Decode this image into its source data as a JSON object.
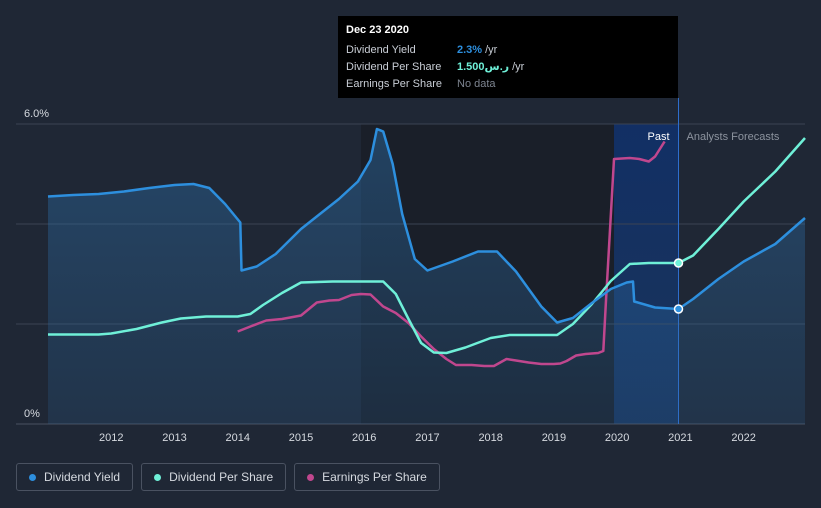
{
  "chart_data": {
    "type": "line",
    "x_range": [
      2011.0,
      2022.97
    ],
    "y_range": [
      0,
      6.0
    ],
    "y_ticks": [
      {
        "label": "6.0%",
        "value": 6.0
      },
      {
        "label": "0%",
        "value": 0
      }
    ],
    "x_ticks": [
      "2012",
      "2013",
      "2014",
      "2015",
      "2016",
      "2017",
      "2018",
      "2019",
      "2020",
      "2021",
      "2022"
    ],
    "past_label": "Past",
    "forecast_label": "Analysts Forecasts",
    "forecast_start": 2020.97,
    "highlight_start": 2019.95,
    "dark_band": [
      2015.95,
      2019.95
    ],
    "series": [
      {
        "name": "Dividend Yield",
        "color": "#2d8fde",
        "x": [
          2011.0,
          2011.4,
          2011.8,
          2012.2,
          2012.6,
          2013.0,
          2013.3,
          2013.55,
          2013.8,
          2014.04,
          2014.06,
          2014.3,
          2014.6,
          2015.0,
          2015.3,
          2015.6,
          2015.9,
          2016.1,
          2016.2,
          2016.3,
          2016.45,
          2016.6,
          2016.8,
          2017.0,
          2017.4,
          2017.8,
          2018.1,
          2018.4,
          2018.8,
          2019.05,
          2019.3,
          2019.6,
          2019.9,
          2020.15,
          2020.25,
          2020.27,
          2020.6,
          2020.97,
          2021.2,
          2021.6,
          2022.0,
          2022.5,
          2022.97
        ],
        "values": [
          4.55,
          4.58,
          4.6,
          4.65,
          4.72,
          4.78,
          4.8,
          4.72,
          4.4,
          4.03,
          3.07,
          3.15,
          3.4,
          3.9,
          4.2,
          4.5,
          4.85,
          5.28,
          5.9,
          5.85,
          5.2,
          4.2,
          3.3,
          3.07,
          3.25,
          3.45,
          3.45,
          3.05,
          2.35,
          2.03,
          2.12,
          2.42,
          2.7,
          2.83,
          2.85,
          2.45,
          2.33,
          2.3,
          2.5,
          2.9,
          3.25,
          3.6,
          4.12
        ]
      },
      {
        "name": "Dividend Per Share",
        "color": "#6ff0d8",
        "x": [
          2011.0,
          2011.5,
          2011.8,
          2012.0,
          2012.4,
          2012.8,
          2013.1,
          2013.5,
          2014.0,
          2014.2,
          2014.4,
          2014.7,
          2015.0,
          2015.5,
          2016.0,
          2016.3,
          2016.5,
          2016.7,
          2016.9,
          2017.1,
          2017.3,
          2017.6,
          2018.0,
          2018.3,
          2018.6,
          2019.0,
          2019.05,
          2019.3,
          2019.6,
          2019.9,
          2020.2,
          2020.5,
          2020.97,
          2021.2,
          2021.6,
          2022.0,
          2022.5,
          2022.97
        ],
        "values": [
          1.79,
          1.79,
          1.79,
          1.81,
          1.9,
          2.03,
          2.11,
          2.15,
          2.15,
          2.2,
          2.38,
          2.62,
          2.83,
          2.85,
          2.85,
          2.85,
          2.6,
          2.1,
          1.62,
          1.43,
          1.42,
          1.53,
          1.72,
          1.78,
          1.78,
          1.78,
          1.78,
          2.0,
          2.4,
          2.86,
          3.2,
          3.22,
          3.22,
          3.37,
          3.9,
          4.45,
          5.05,
          5.72
        ]
      },
      {
        "name": "Earnings Per Share",
        "color": "#c0478e",
        "x": [
          2014.0,
          2014.2,
          2014.45,
          2014.7,
          2015.0,
          2015.25,
          2015.45,
          2015.6,
          2015.8,
          2015.95,
          2016.1,
          2016.3,
          2016.5,
          2016.7,
          2016.9,
          2017.1,
          2017.3,
          2017.45,
          2017.7,
          2017.9,
          2018.05,
          2018.25,
          2018.4,
          2018.6,
          2018.8,
          2019.0,
          2019.1,
          2019.2,
          2019.35,
          2019.5,
          2019.7,
          2019.78,
          2019.82,
          2019.95,
          2020.2,
          2020.35,
          2020.5,
          2020.6,
          2020.75
        ],
        "values": [
          1.85,
          1.95,
          2.07,
          2.1,
          2.17,
          2.43,
          2.47,
          2.48,
          2.58,
          2.6,
          2.59,
          2.35,
          2.22,
          2.02,
          1.75,
          1.5,
          1.3,
          1.18,
          1.18,
          1.16,
          1.16,
          1.3,
          1.27,
          1.23,
          1.2,
          1.2,
          1.21,
          1.26,
          1.37,
          1.4,
          1.42,
          1.46,
          2.4,
          5.3,
          5.32,
          5.3,
          5.25,
          5.35,
          5.65
        ]
      }
    ],
    "markers": [
      {
        "series": "Dividend Per Share",
        "x": 2020.97,
        "value": 3.22
      },
      {
        "series": "Dividend Yield",
        "x": 2020.97,
        "value": 2.3
      }
    ]
  },
  "tooltip": {
    "date": "Dec 23 2020",
    "rows": [
      {
        "label": "Dividend Yield",
        "value": "2.3%",
        "unit": "/yr",
        "color": "#2d8fde"
      },
      {
        "label": "Dividend Per Share",
        "value": "1.500ر.س",
        "unit": "/yr",
        "color": "#6ff0d8"
      },
      {
        "label": "Earnings Per Share",
        "value": "No data",
        "unit": "",
        "color": "#7d8490"
      }
    ]
  },
  "legend": [
    {
      "label": "Dividend Yield",
      "color": "#2d8fde"
    },
    {
      "label": "Dividend Per Share",
      "color": "#6ff0d8"
    },
    {
      "label": "Earnings Per Share",
      "color": "#c0478e"
    }
  ]
}
